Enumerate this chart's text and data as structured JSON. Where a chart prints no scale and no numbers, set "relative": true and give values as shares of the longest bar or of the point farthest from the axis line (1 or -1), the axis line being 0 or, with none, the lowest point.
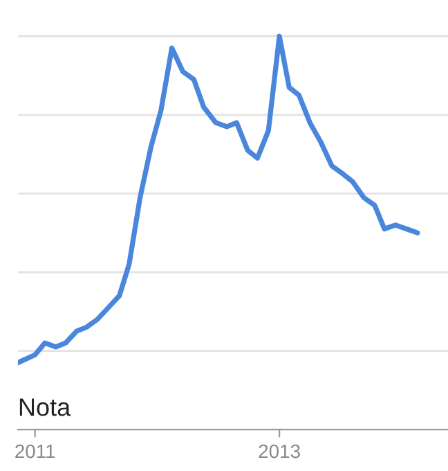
{
  "chart_data": {
    "type": "line",
    "relative": true,
    "grid": "y",
    "x": [
      2010.86,
      2011.0,
      2011.08,
      2011.17,
      2011.25,
      2011.34,
      2011.42,
      2011.51,
      2011.6,
      2011.69,
      2011.77,
      2011.86,
      2011.95,
      2012.03,
      2012.12,
      2012.21,
      2012.3,
      2012.38,
      2012.48,
      2012.57,
      2012.65,
      2012.74,
      2012.82,
      2012.91,
      2013.0,
      2013.08,
      2013.16,
      2013.25,
      2013.34,
      2013.43,
      2013.52,
      2013.6,
      2013.69,
      2013.78,
      2013.86,
      2013.95,
      2014.04,
      2014.13
    ],
    "series": [
      {
        "color": "#4a86dc",
        "values": [
          0.17,
          0.19,
          0.22,
          0.21,
          0.22,
          0.25,
          0.26,
          0.28,
          0.31,
          0.34,
          0.42,
          0.59,
          0.72,
          0.81,
          0.97,
          0.91,
          0.89,
          0.82,
          0.78,
          0.77,
          0.78,
          0.71,
          0.69,
          0.76,
          1,
          0.87,
          0.85,
          0.78,
          0.73,
          0.67,
          0.65,
          0.63,
          0.59,
          0.57,
          0.51,
          0.52,
          0.51,
          0.5
        ]
      }
    ],
    "xlim": [
      2010.86,
      2014.38
    ],
    "xticks": [
      2011,
      2013
    ],
    "annotations": [
      "Nota"
    ]
  }
}
